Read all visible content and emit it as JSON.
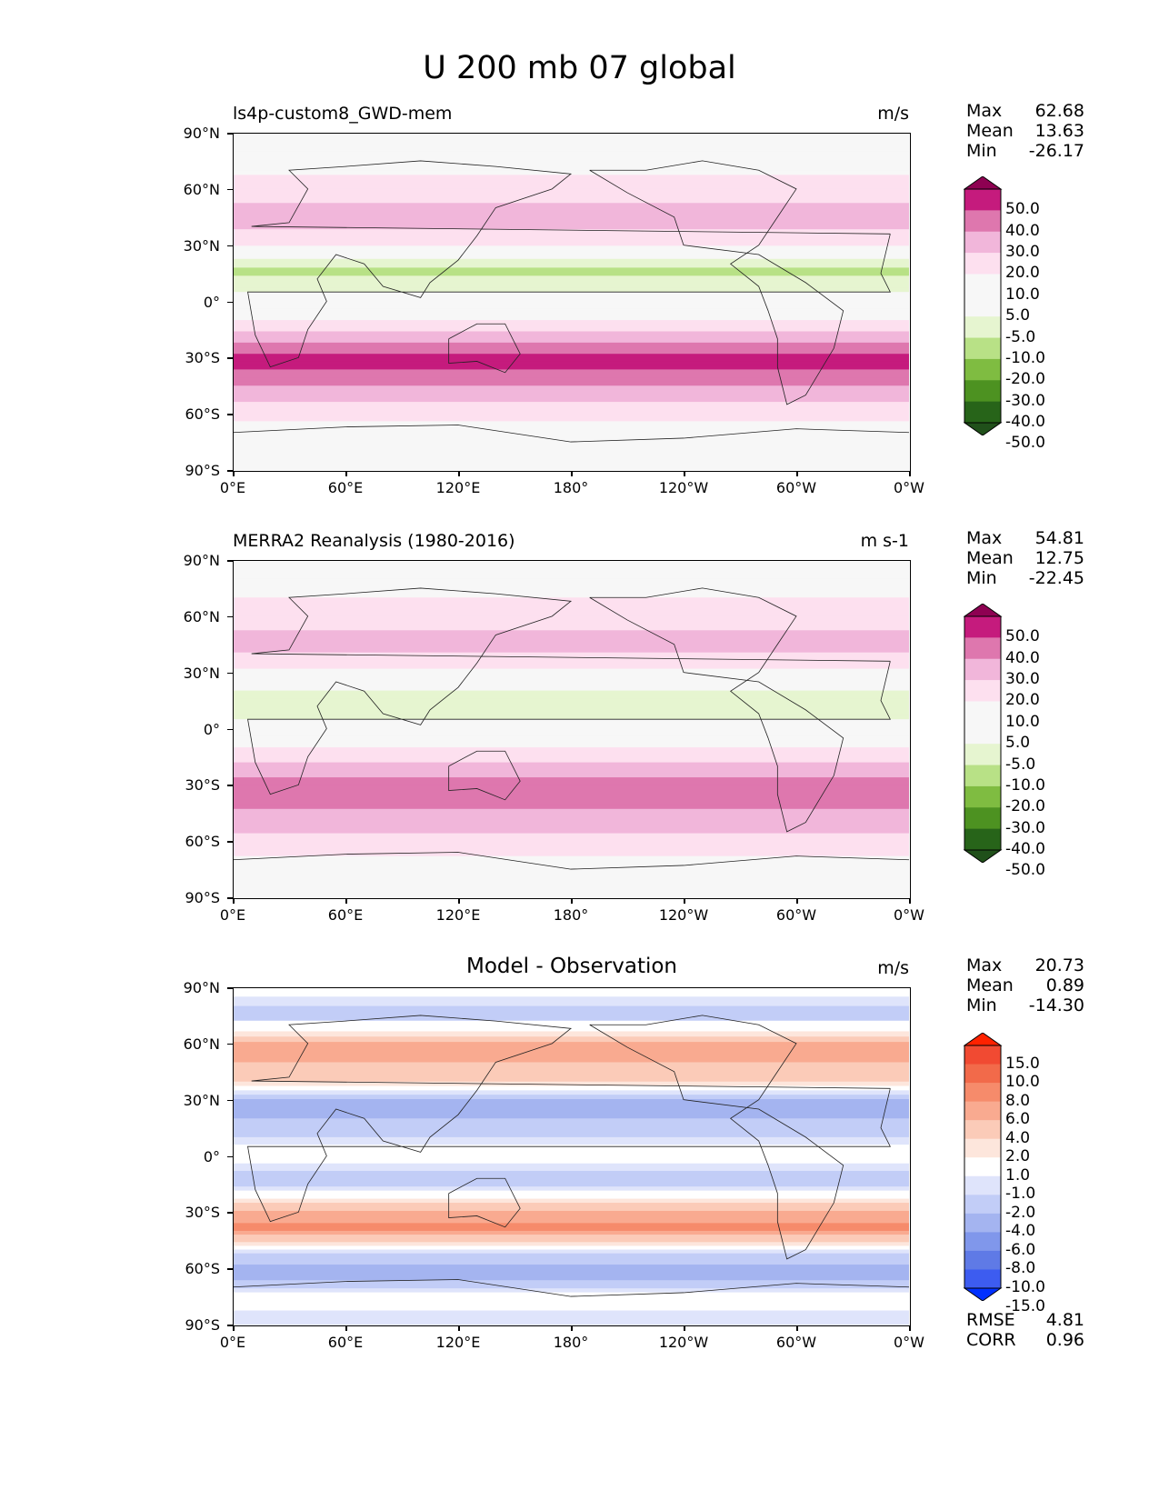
{
  "figure": {
    "title": "U 200 mb 07 global"
  },
  "axes": {
    "yticks": [
      "90°N",
      "60°N",
      "30°N",
      "0°",
      "30°S",
      "60°S",
      "90°S"
    ],
    "xticks": [
      "0°E",
      "60°E",
      "120°E",
      "180°",
      "120°W",
      "60°W",
      "0°W"
    ]
  },
  "chart_data": [
    {
      "type": "heatmap",
      "title": "ls4p-custom8_GWD-mem",
      "units": "m/s",
      "stats": {
        "max_label": "Max",
        "max": "62.68",
        "mean_label": "Mean",
        "mean": "13.63",
        "min_label": "Min",
        "min": "-26.17"
      },
      "xlim": [
        0,
        360
      ],
      "ylim": [
        -90,
        90
      ],
      "levels": [
        "50.0",
        "40.0",
        "30.0",
        "20.0",
        "10.0",
        "5.0",
        "-5.0",
        "-10.0",
        "-20.0",
        "-30.0",
        "-40.0",
        "-50.0"
      ],
      "colors": [
        "#8e0152",
        "#c51b7d",
        "#de77ae",
        "#f1b6da",
        "#fde0ef",
        "#f7f7f7",
        "#f7f7f7",
        "#e6f5d0",
        "#b8e186",
        "#7fbc41",
        "#4d9221",
        "#276419",
        "#20501a"
      ],
      "bands": [
        {
          "lat": 90,
          "value": 2
        },
        {
          "lat": 75,
          "value": 6
        },
        {
          "lat": 60,
          "value": 14
        },
        {
          "lat": 45,
          "value": 28
        },
        {
          "lat": 32,
          "value": 12
        },
        {
          "lat": 18,
          "value": -12
        },
        {
          "lat": 5,
          "value": -6
        },
        {
          "lat": -8,
          "value": 8
        },
        {
          "lat": -20,
          "value": 25
        },
        {
          "lat": -32,
          "value": 45
        },
        {
          "lat": -45,
          "value": 30
        },
        {
          "lat": -58,
          "value": 15
        },
        {
          "lat": -70,
          "value": 4
        },
        {
          "lat": -90,
          "value": 0
        }
      ]
    },
    {
      "type": "heatmap",
      "title": "MERRA2 Reanalysis (1980-2016)",
      "units": "m s-1",
      "stats": {
        "max_label": "Max",
        "max": "54.81",
        "mean_label": "Mean",
        "mean": "12.75",
        "min_label": "Min",
        "min": "-22.45"
      },
      "xlim": [
        0,
        360
      ],
      "ylim": [
        -90,
        90
      ],
      "levels": [
        "50.0",
        "40.0",
        "30.0",
        "20.0",
        "10.0",
        "5.0",
        "-5.0",
        "-10.0",
        "-20.0",
        "-30.0",
        "-40.0",
        "-50.0"
      ],
      "colors": [
        "#8e0152",
        "#c51b7d",
        "#de77ae",
        "#f1b6da",
        "#fde0ef",
        "#f7f7f7",
        "#f7f7f7",
        "#e6f5d0",
        "#b8e186",
        "#7fbc41",
        "#4d9221",
        "#276419",
        "#20501a"
      ],
      "bands": [
        {
          "lat": 90,
          "value": 2
        },
        {
          "lat": 75,
          "value": 8
        },
        {
          "lat": 60,
          "value": 15
        },
        {
          "lat": 45,
          "value": 25
        },
        {
          "lat": 32,
          "value": 10
        },
        {
          "lat": 18,
          "value": -10
        },
        {
          "lat": 5,
          "value": -5
        },
        {
          "lat": -8,
          "value": 6
        },
        {
          "lat": -20,
          "value": 22
        },
        {
          "lat": -32,
          "value": 38
        },
        {
          "lat": -45,
          "value": 28
        },
        {
          "lat": -58,
          "value": 18
        },
        {
          "lat": -70,
          "value": 8
        },
        {
          "lat": -90,
          "value": 0
        }
      ]
    },
    {
      "type": "heatmap",
      "title": "Model - Observation",
      "units": "m/s",
      "stats": {
        "max_label": "Max",
        "max": "20.73",
        "mean_label": "Mean",
        "mean": "0.89",
        "min_label": "Min",
        "min": "-14.30"
      },
      "error_stats": {
        "rmse_label": "RMSE",
        "rmse": "4.81",
        "corr_label": "CORR",
        "corr": "0.96"
      },
      "xlim": [
        0,
        360
      ],
      "ylim": [
        -90,
        90
      ],
      "levels": [
        "15.0",
        "10.0",
        "8.0",
        "6.0",
        "4.0",
        "2.0",
        "1.0",
        "-1.0",
        "-2.0",
        "-4.0",
        "-6.0",
        "-8.0",
        "-10.0",
        "-15.0"
      ],
      "colors": [
        "#ff2200",
        "#f14a32",
        "#f26a4a",
        "#f68b6b",
        "#f9aa90",
        "#fbcbb8",
        "#fde6dc",
        "#ffffff",
        "#dfe4fb",
        "#c2cdf7",
        "#a4b4f0",
        "#8097eb",
        "#5f7ae6",
        "#3d5cf0",
        "#0030ff"
      ],
      "bands": [
        {
          "lat": 90,
          "value": 0
        },
        {
          "lat": 75,
          "value": -3
        },
        {
          "lat": 58,
          "value": 5
        },
        {
          "lat": 42,
          "value": 3
        },
        {
          "lat": 28,
          "value": -5
        },
        {
          "lat": 12,
          "value": -3
        },
        {
          "lat": 0,
          "value": 1
        },
        {
          "lat": -12,
          "value": -4
        },
        {
          "lat": -25,
          "value": 2
        },
        {
          "lat": -38,
          "value": 7
        },
        {
          "lat": -50,
          "value": -1
        },
        {
          "lat": -62,
          "value": -6
        },
        {
          "lat": -75,
          "value": 0
        },
        {
          "lat": -90,
          "value": -2
        }
      ]
    }
  ]
}
